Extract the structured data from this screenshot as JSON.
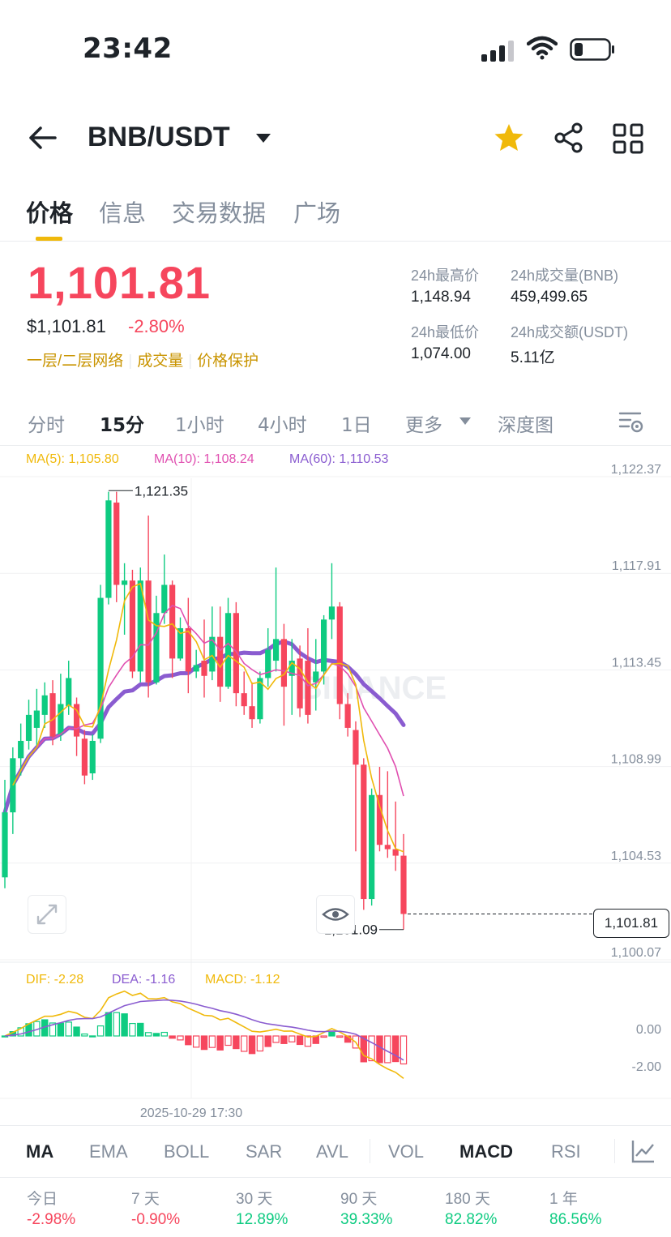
{
  "status_bar": {
    "time": "23:42"
  },
  "header": {
    "pair": "BNB/USDT"
  },
  "tabs": [
    {
      "label": "价格"
    },
    {
      "label": "信息"
    },
    {
      "label": "交易数据"
    },
    {
      "label": "广场"
    }
  ],
  "price": {
    "last": "1,101.81",
    "usd": "$1,101.81",
    "change": "-2.80%",
    "links": [
      "一层/二层网络",
      "成交量",
      "价格保护"
    ]
  },
  "stats": {
    "high_label": "24h最高价",
    "high_value": "1,148.94",
    "vol_label": "24h成交量(BNB)",
    "vol_value": "459,499.65",
    "low_label": "24h最低价",
    "low_value": "1,074.00",
    "amount_label": "24h成交额(USDT)",
    "amount_value": "5.11亿"
  },
  "intervals": {
    "items": [
      "分时",
      "15分",
      "1小时",
      "4小时",
      "1日",
      "更多",
      "深度图"
    ],
    "selected": "15分"
  },
  "ma_legend": {
    "ma5": "MA(5): 1,105.80",
    "ma10": "MA(10): 1,108.24",
    "ma60": "MA(60): 1,110.53"
  },
  "price_axis": [
    "1,122.37",
    "1,117.91",
    "1,113.45",
    "1,108.99",
    "1,104.53",
    "1,100.07"
  ],
  "high_marker": "1,121.35",
  "low_marker": "1,101.09",
  "current_price_box": "1,101.81",
  "watermark": "BINANCE",
  "macd_legend": {
    "dif": "DIF: -2.28",
    "dea": "DEA: -1.16",
    "macd": "MACD: -1.12"
  },
  "macd_axis": [
    "0.00",
    "-2.00"
  ],
  "time_label": "2025-10-29 17:30",
  "indicators": {
    "main": [
      "MA",
      "EMA",
      "BOLL",
      "SAR",
      "AVL"
    ],
    "sub": [
      "VOL",
      "MACD",
      "RSI"
    ],
    "active_main": "MA",
    "active_sub": "MACD"
  },
  "performance": [
    {
      "label": "今日",
      "value": "-2.98%"
    },
    {
      "label": "7 天",
      "value": "-0.90%"
    },
    {
      "label": "30 天",
      "value": "12.89%"
    },
    {
      "label": "90 天",
      "value": "39.33%"
    },
    {
      "label": "180 天",
      "value": "82.82%"
    },
    {
      "label": "1 年",
      "value": "86.56%"
    }
  ],
  "colors": {
    "up": "#0ecb81",
    "down": "#f6465d",
    "accent": "#f0b90b",
    "ma5": "#f0b90b",
    "ma10": "#e04fb0",
    "ma60": "#8a5cd0",
    "dif": "#f0b90b",
    "dea": "#8a5cd0"
  },
  "chart_data": {
    "type": "candlestick",
    "interval": "15分",
    "ylim": [
      1100.07,
      1122.37
    ],
    "y_ticks": [
      1122.37,
      1117.91,
      1113.45,
      1108.99,
      1104.53,
      1100.07
    ],
    "candles": [
      [
        1103.5,
        1106.5,
        1103.0,
        1108.0
      ],
      [
        1106.5,
        1109.0,
        1105.5,
        1109.5
      ],
      [
        1109.0,
        1109.8,
        1108.2,
        1110.6
      ],
      [
        1109.8,
        1111.0,
        1109.4,
        1111.7
      ],
      [
        1110.4,
        1111.2,
        1109.6,
        1112.2
      ],
      [
        1111.0,
        1111.9,
        1110.4,
        1112.5
      ],
      [
        1112.0,
        1110.0,
        1109.6,
        1112.6
      ],
      [
        1110.1,
        1111.5,
        1109.8,
        1112.9
      ],
      [
        1111.4,
        1112.7,
        1111.0,
        1113.5
      ],
      [
        1111.5,
        1110.0,
        1109.1,
        1111.8
      ],
      [
        1109.9,
        1108.2,
        1107.8,
        1110.3
      ],
      [
        1108.3,
        1109.8,
        1108.0,
        1110.1
      ],
      [
        1109.9,
        1116.4,
        1109.7,
        1117.0
      ],
      [
        1116.4,
        1120.9,
        1116.1,
        1121.3
      ],
      [
        1120.8,
        1117.0,
        1116.2,
        1121.3
      ],
      [
        1117.0,
        1117.2,
        1114.7,
        1118.0
      ],
      [
        1117.2,
        1113.0,
        1112.7,
        1117.7
      ],
      [
        1113.0,
        1117.2,
        1112.5,
        1117.8
      ],
      [
        1117.2,
        1112.5,
        1111.8,
        1120.2
      ],
      [
        1112.5,
        1115.7,
        1112.4,
        1116.5
      ],
      [
        1115.7,
        1117.0,
        1115.2,
        1118.4
      ],
      [
        1117.0,
        1113.6,
        1112.7,
        1117.2
      ],
      [
        1113.6,
        1115.0,
        1113.5,
        1115.5
      ],
      [
        1115.0,
        1113.0,
        1112.0,
        1116.4
      ],
      [
        1113.0,
        1113.3,
        1112.7,
        1114.0
      ],
      [
        1113.5,
        1112.8,
        1111.8,
        1115.4
      ],
      [
        1113.0,
        1114.6,
        1112.6,
        1116.0
      ],
      [
        1114.6,
        1112.3,
        1111.6,
        1116.0
      ],
      [
        1112.3,
        1115.7,
        1112.2,
        1116.4
      ],
      [
        1115.7,
        1112.0,
        1111.4,
        1116.2
      ],
      [
        1112.0,
        1111.4,
        1111.0,
        1113.0
      ],
      [
        1111.4,
        1110.8,
        1110.4,
        1112.5
      ],
      [
        1110.8,
        1112.7,
        1110.6,
        1113.0
      ],
      [
        1112.7,
        1114.0,
        1112.3,
        1115.0
      ],
      [
        1113.5,
        1114.5,
        1113.0,
        1117.8
      ],
      [
        1114.5,
        1112.3,
        1110.5,
        1115.2
      ],
      [
        1112.8,
        1113.5,
        1111.0,
        1114.5
      ],
      [
        1113.6,
        1111.3,
        1110.9,
        1114.2
      ],
      [
        1113.5,
        1111.0,
        1110.6,
        1115.0
      ],
      [
        1112.5,
        1113.0,
        1111.2,
        1114.5
      ],
      [
        1113.0,
        1115.4,
        1112.4,
        1115.6
      ],
      [
        1115.4,
        1116.0,
        1114.5,
        1118.0
      ],
      [
        1116.0,
        1111.5,
        1110.8,
        1116.2
      ],
      [
        1111.5,
        1110.4,
        1110.0,
        1112.0
      ],
      [
        1110.3,
        1108.7,
        1104.7,
        1110.7
      ],
      [
        1108.7,
        1102.5,
        1102.0,
        1109.0
      ],
      [
        1102.5,
        1107.3,
        1102.2,
        1107.6
      ],
      [
        1107.3,
        1105.0,
        1104.7,
        1108.6
      ],
      [
        1105.0,
        1104.8,
        1104.4,
        1108.4
      ],
      [
        1104.8,
        1104.5,
        1103.8,
        1107.0
      ],
      [
        1104.5,
        1101.81,
        1101.09,
        1105.5
      ]
    ],
    "ma5_last": 1105.8,
    "ma10_last": 1108.24,
    "ma60_last": 1110.53,
    "high": 1121.35,
    "low": 1101.09,
    "last": 1101.81,
    "macd": {
      "y_ticks": [
        0.0,
        -2.0
      ],
      "dif_last": -2.28,
      "dea_last": -1.16,
      "hist_last": -1.12
    }
  }
}
